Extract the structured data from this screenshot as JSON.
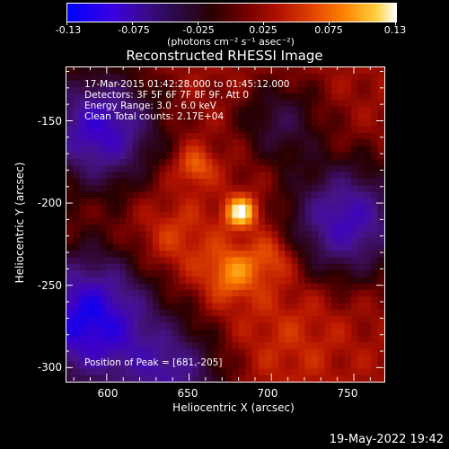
{
  "colorbar": {
    "labels": [
      "-0.13",
      "-0.075",
      "-0.025",
      "0.025",
      "0.075",
      "0.13"
    ],
    "units": "(photons cm⁻² s⁻¹ asec⁻²)"
  },
  "title": "Reconstructed RHESSI Image",
  "info": {
    "time_range": "17-Mar-2015 01:42:28.000 to 01:45:12.000",
    "detectors": "Detectors: 3F 5F 6F 7F 8F 9F, Att 0",
    "energy_range": "Energy Range: 3.0 - 6.0 keV",
    "method_counts": "Clean     Total counts: 2.17E+04"
  },
  "peak_label": "Position of Peak = [681,-205]",
  "date_stamp": "19-May-2022 19:42",
  "chart_data": {
    "type": "heatmap",
    "xlabel": "Heliocentric X (arcsec)",
    "ylabel": "Heliocentric Y (arcsec)",
    "xlim": [
      575,
      768
    ],
    "ylim": [
      -308,
      -117
    ],
    "x_ticks": [
      600,
      650,
      700,
      750
    ],
    "y_ticks": [
      -150,
      -200,
      -250,
      -300
    ],
    "color_range": [
      -0.13,
      0.13
    ],
    "peak": [
      681,
      -205
    ],
    "sources": [
      {
        "x": 681,
        "y": -205,
        "value": 0.13
      },
      {
        "x": 653,
        "y": -177,
        "value": 0.095
      },
      {
        "x": 675,
        "y": -242,
        "value": 0.1
      },
      {
        "x": 700,
        "y": -230,
        "value": 0.085
      }
    ]
  }
}
